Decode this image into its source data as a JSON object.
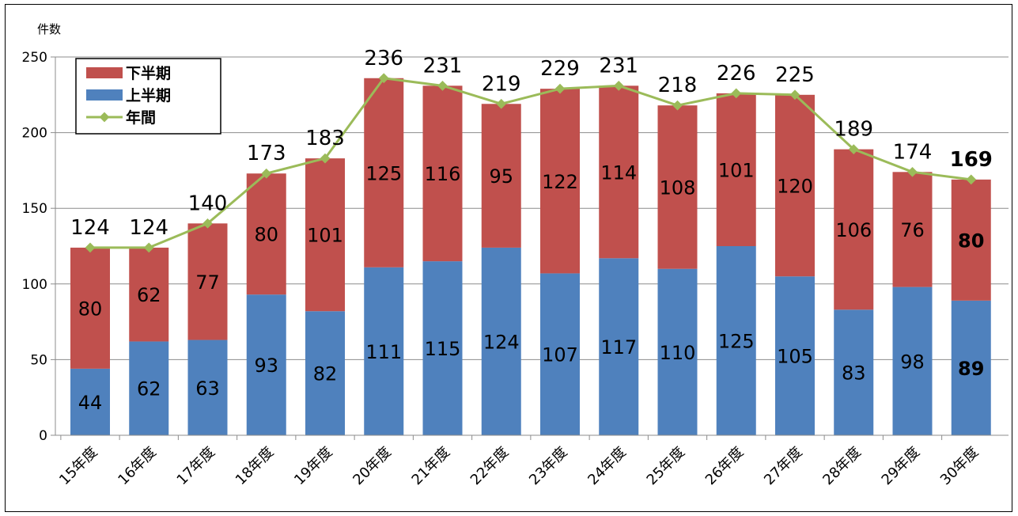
{
  "chart_data": {
    "type": "bar",
    "stacked": true,
    "ylabel": "件数",
    "ylim": [
      0,
      250
    ],
    "yticks": [
      0,
      50,
      100,
      150,
      200,
      250
    ],
    "categories": [
      "15年度",
      "16年度",
      "17年度",
      "18年度",
      "19年度",
      "20年度",
      "21年度",
      "22年度",
      "23年度",
      "24年度",
      "25年度",
      "26年度",
      "27年度",
      "28年度",
      "29年度",
      "30年度"
    ],
    "series": [
      {
        "name": "上半期",
        "type": "bar",
        "color": "#4f81bd",
        "values": [
          44,
          62,
          63,
          93,
          82,
          111,
          115,
          124,
          107,
          117,
          110,
          125,
          105,
          83,
          98,
          89
        ]
      },
      {
        "name": "下半期",
        "type": "bar",
        "color": "#c0504d",
        "values": [
          80,
          62,
          77,
          80,
          101,
          125,
          116,
          95,
          122,
          114,
          108,
          101,
          120,
          106,
          76,
          80
        ]
      },
      {
        "name": "年間",
        "type": "line",
        "color": "#9bbb59",
        "values": [
          124,
          124,
          140,
          173,
          183,
          236,
          231,
          219,
          229,
          231,
          218,
          226,
          225,
          189,
          174,
          169
        ]
      }
    ],
    "legend": {
      "position": "top-left",
      "order": [
        "下半期",
        "上半期",
        "年間"
      ]
    },
    "highlight_last": true,
    "grid": true
  }
}
